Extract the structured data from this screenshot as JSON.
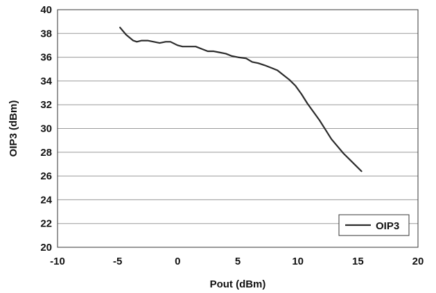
{
  "chart_data": {
    "type": "line",
    "xlabel": "Pout (dBm)",
    "ylabel": "OIP3 (dBm)",
    "xlim": [
      -10,
      20
    ],
    "ylim": [
      20,
      40
    ],
    "x_ticks": [
      -10,
      -5,
      0,
      5,
      10,
      15,
      20
    ],
    "y_ticks": [
      20,
      22,
      24,
      26,
      28,
      30,
      32,
      34,
      36,
      38,
      40
    ],
    "x_tick_labels": [
      "-10",
      "-5",
      "0",
      "5",
      "10",
      "15",
      "20"
    ],
    "y_tick_labels": [
      "20",
      "22",
      "24",
      "26",
      "28",
      "30",
      "32",
      "34",
      "36",
      "38",
      "40"
    ],
    "grid": "horizontal",
    "legend_position": "bottom-right",
    "series": [
      {
        "name": "OIP3",
        "color": "#2a2a2a",
        "points": [
          [
            -4.8,
            38.5
          ],
          [
            -4.3,
            37.9
          ],
          [
            -3.7,
            37.4
          ],
          [
            -3.4,
            37.3
          ],
          [
            -3.0,
            37.4
          ],
          [
            -2.5,
            37.4
          ],
          [
            -2.0,
            37.3
          ],
          [
            -1.5,
            37.2
          ],
          [
            -1.0,
            37.3
          ],
          [
            -0.6,
            37.3
          ],
          [
            0.0,
            37.0
          ],
          [
            0.4,
            36.9
          ],
          [
            1.0,
            36.9
          ],
          [
            1.5,
            36.9
          ],
          [
            2.0,
            36.7
          ],
          [
            2.5,
            36.5
          ],
          [
            3.0,
            36.5
          ],
          [
            3.5,
            36.4
          ],
          [
            4.0,
            36.3
          ],
          [
            4.5,
            36.1
          ],
          [
            5.0,
            36.0
          ],
          [
            5.7,
            35.9
          ],
          [
            6.2,
            35.6
          ],
          [
            6.7,
            35.5
          ],
          [
            7.3,
            35.3
          ],
          [
            7.8,
            35.1
          ],
          [
            8.3,
            34.9
          ],
          [
            8.8,
            34.5
          ],
          [
            9.3,
            34.1
          ],
          [
            9.8,
            33.6
          ],
          [
            10.3,
            32.9
          ],
          [
            10.8,
            32.1
          ],
          [
            11.3,
            31.4
          ],
          [
            11.8,
            30.7
          ],
          [
            12.3,
            29.9
          ],
          [
            12.8,
            29.1
          ],
          [
            13.3,
            28.5
          ],
          [
            13.8,
            27.9
          ],
          [
            14.3,
            27.4
          ],
          [
            14.8,
            26.9
          ],
          [
            15.3,
            26.4
          ]
        ]
      }
    ]
  }
}
